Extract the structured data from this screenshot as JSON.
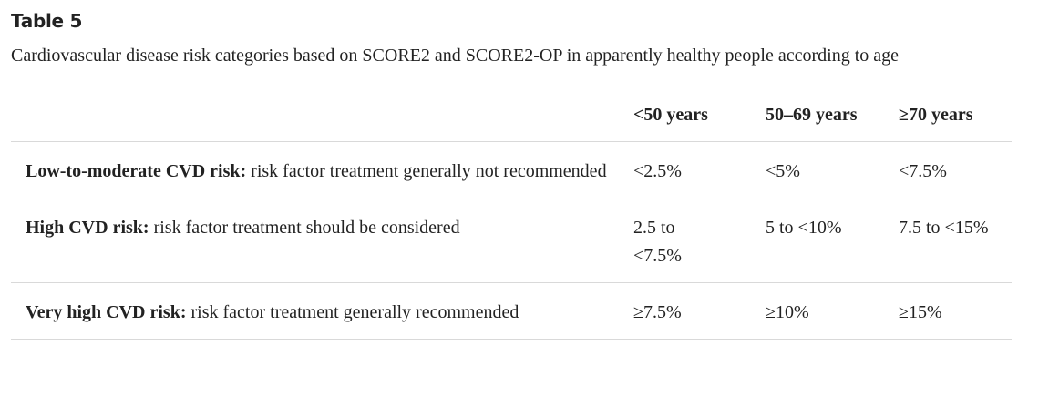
{
  "title": "Table 5",
  "caption": "Cardiovascular disease risk categories based on SCORE2 and SCORE2-OP in apparently healthy people according to age",
  "table": {
    "header": [
      "<50 years",
      "50–69 years",
      "≥70 years"
    ],
    "rows": [
      {
        "term": "Low-to-moderate CVD risk:",
        "text": "risk factor treatment generally not recommended",
        "cells": [
          "<2.5%",
          "<5%",
          "<7.5%"
        ]
      },
      {
        "term": "High CVD risk:",
        "text": "risk factor treatment should be considered",
        "cells": [
          "2.5 to <7.5%",
          "5 to <10%",
          "7.5 to <15%"
        ]
      },
      {
        "term": "Very high CVD risk:",
        "text": "risk factor treatment generally recommended",
        "cells": [
          "≥7.5%",
          "≥10%",
          "≥15%"
        ]
      }
    ]
  }
}
